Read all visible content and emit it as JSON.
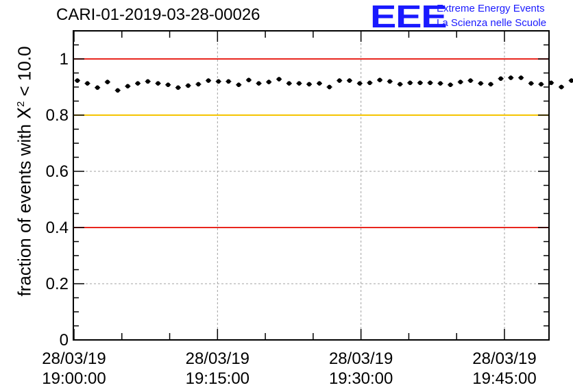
{
  "header": {
    "title": "CARI-01-2019-03-28-00026",
    "logo_text": "EEE",
    "logo_line1": "Extreme Energy Events",
    "logo_line2": "La Scienza nelle Scuole"
  },
  "axis": {
    "ylabel_prefix": "fraction of events with ",
    "ylabel_chi": "X",
    "ylabel_sup": "2",
    "ylabel_suffix": " < 10.0"
  },
  "chart_data": {
    "type": "scatter",
    "title": "CARI-01-2019-03-28-00026",
    "ylabel": "fraction of events with X² < 10.0",
    "xlabel": "",
    "xlim": [
      "19:00:00",
      "19:50:00"
    ],
    "ylim": [
      0,
      1.1
    ],
    "y_ticks": [
      0,
      0.2,
      0.4,
      0.6,
      0.8,
      1
    ],
    "y_tick_labels": [
      "0",
      "0.2",
      "0.4",
      "0.6",
      "0.8",
      "1"
    ],
    "x_ticks": [
      "19:00:00",
      "19:15:00",
      "19:30:00",
      "19:45:00"
    ],
    "x_tick_labels": [
      {
        "date": "28/03/19",
        "time": "19:00:00"
      },
      {
        "date": "28/03/19",
        "time": "19:15:00"
      },
      {
        "date": "28/03/19",
        "time": "19:30:00"
      },
      {
        "date": "28/03/19",
        "time": "19:45:00"
      }
    ],
    "grid": true,
    "reference_lines": [
      {
        "y": 1.0,
        "color": "#e8261e"
      },
      {
        "y": 0.8,
        "color": "#f5c400"
      },
      {
        "y": 0.4,
        "color": "#e8261e"
      }
    ],
    "points": [
      {
        "x": "19:00:21",
        "y": 0.923
      },
      {
        "x": "19:01:24",
        "y": 0.913
      },
      {
        "x": "19:02:27",
        "y": 0.898
      },
      {
        "x": "19:03:30",
        "y": 0.918
      },
      {
        "x": "19:04:34",
        "y": 0.888
      },
      {
        "x": "19:05:37",
        "y": 0.903
      },
      {
        "x": "19:06:40",
        "y": 0.913
      },
      {
        "x": "19:07:43",
        "y": 0.92
      },
      {
        "x": "19:08:47",
        "y": 0.913
      },
      {
        "x": "19:09:50",
        "y": 0.908
      },
      {
        "x": "19:10:53",
        "y": 0.898
      },
      {
        "x": "19:11:56",
        "y": 0.905
      },
      {
        "x": "19:13:00",
        "y": 0.91
      },
      {
        "x": "19:14:03",
        "y": 0.923
      },
      {
        "x": "19:15:06",
        "y": 0.92
      },
      {
        "x": "19:16:09",
        "y": 0.92
      },
      {
        "x": "19:17:13",
        "y": 0.908
      },
      {
        "x": "19:18:16",
        "y": 0.925
      },
      {
        "x": "19:19:19",
        "y": 0.913
      },
      {
        "x": "19:20:22",
        "y": 0.918
      },
      {
        "x": "19:21:26",
        "y": 0.928
      },
      {
        "x": "19:22:29",
        "y": 0.913
      },
      {
        "x": "19:23:32",
        "y": 0.913
      },
      {
        "x": "19:24:35",
        "y": 0.91
      },
      {
        "x": "19:25:39",
        "y": 0.913
      },
      {
        "x": "19:26:42",
        "y": 0.9
      },
      {
        "x": "19:27:45",
        "y": 0.923
      },
      {
        "x": "19:28:48",
        "y": 0.923
      },
      {
        "x": "19:29:52",
        "y": 0.913
      },
      {
        "x": "19:30:55",
        "y": 0.915
      },
      {
        "x": "19:31:58",
        "y": 0.925
      },
      {
        "x": "19:33:01",
        "y": 0.92
      },
      {
        "x": "19:34:05",
        "y": 0.91
      },
      {
        "x": "19:35:08",
        "y": 0.915
      },
      {
        "x": "19:36:11",
        "y": 0.915
      },
      {
        "x": "19:37:14",
        "y": 0.915
      },
      {
        "x": "19:38:18",
        "y": 0.913
      },
      {
        "x": "19:39:21",
        "y": 0.908
      },
      {
        "x": "19:40:24",
        "y": 0.918
      },
      {
        "x": "19:41:27",
        "y": 0.923
      },
      {
        "x": "19:42:31",
        "y": 0.913
      },
      {
        "x": "19:43:34",
        "y": 0.91
      },
      {
        "x": "19:44:37",
        "y": 0.93
      },
      {
        "x": "19:45:40",
        "y": 0.933
      },
      {
        "x": "19:46:44",
        "y": 0.933
      },
      {
        "x": "19:47:47",
        "y": 0.913
      },
      {
        "x": "19:48:50",
        "y": 0.91
      },
      {
        "x": "19:49:53",
        "y": 0.915
      },
      {
        "x": "19:50:57",
        "y": 0.9
      },
      {
        "x": "19:52:00",
        "y": 0.923
      }
    ],
    "error_bar": 0.008,
    "colors": {
      "points": "#000000",
      "grid": "#a0a0a0",
      "axes": "#000000"
    }
  }
}
